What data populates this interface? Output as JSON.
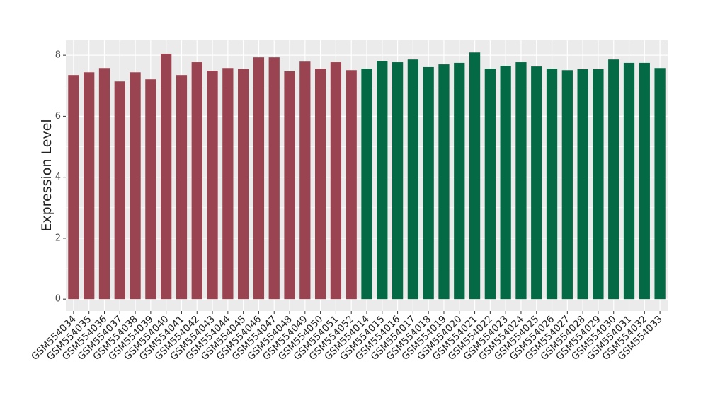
{
  "chart_data": {
    "type": "bar",
    "ylabel": "Expression Level",
    "categories": [
      "GSM554034",
      "GSM554035",
      "GSM554036",
      "GSM554037",
      "GSM554038",
      "GSM554039",
      "GSM554040",
      "GSM554041",
      "GSM554042",
      "GSM554043",
      "GSM554044",
      "GSM554045",
      "GSM554046",
      "GSM554047",
      "GSM554048",
      "GSM554049",
      "GSM554050",
      "GSM554051",
      "GSM554052",
      "GSM554014",
      "GSM554015",
      "GSM554016",
      "GSM554017",
      "GSM554018",
      "GSM554019",
      "GSM554020",
      "GSM554021",
      "GSM554022",
      "GSM554023",
      "GSM554024",
      "GSM554025",
      "GSM554026",
      "GSM554027",
      "GSM554028",
      "GSM554029",
      "GSM554030",
      "GSM554031",
      "GSM554032",
      "GSM554033"
    ],
    "values": [
      7.35,
      7.44,
      7.58,
      7.14,
      7.44,
      7.21,
      8.05,
      7.35,
      7.77,
      7.49,
      7.58,
      7.55,
      7.93,
      7.93,
      7.47,
      7.79,
      7.56,
      7.77,
      7.51,
      7.56,
      7.81,
      7.77,
      7.86,
      7.61,
      7.7,
      7.75,
      8.09,
      7.56,
      7.65,
      7.77,
      7.63,
      7.56,
      7.51,
      7.54,
      7.54,
      7.86,
      7.75,
      7.75,
      7.58
    ],
    "colors": [
      "#9b4451",
      "#9b4451",
      "#9b4451",
      "#9b4451",
      "#9b4451",
      "#9b4451",
      "#9b4451",
      "#9b4451",
      "#9b4451",
      "#9b4451",
      "#9b4451",
      "#9b4451",
      "#9b4451",
      "#9b4451",
      "#9b4451",
      "#9b4451",
      "#9b4451",
      "#9b4451",
      "#9b4451",
      "#046a46",
      "#046a46",
      "#046a46",
      "#046a46",
      "#046a46",
      "#046a46",
      "#046a46",
      "#046a46",
      "#046a46",
      "#046a46",
      "#046a46",
      "#046a46",
      "#046a46",
      "#046a46",
      "#046a46",
      "#046a46",
      "#046a46",
      "#046a46",
      "#046a46",
      "#046a46"
    ],
    "ylim": [
      -0.39,
      8.49
    ],
    "yticks": [
      0,
      2,
      4,
      6,
      8
    ],
    "grid": true
  }
}
